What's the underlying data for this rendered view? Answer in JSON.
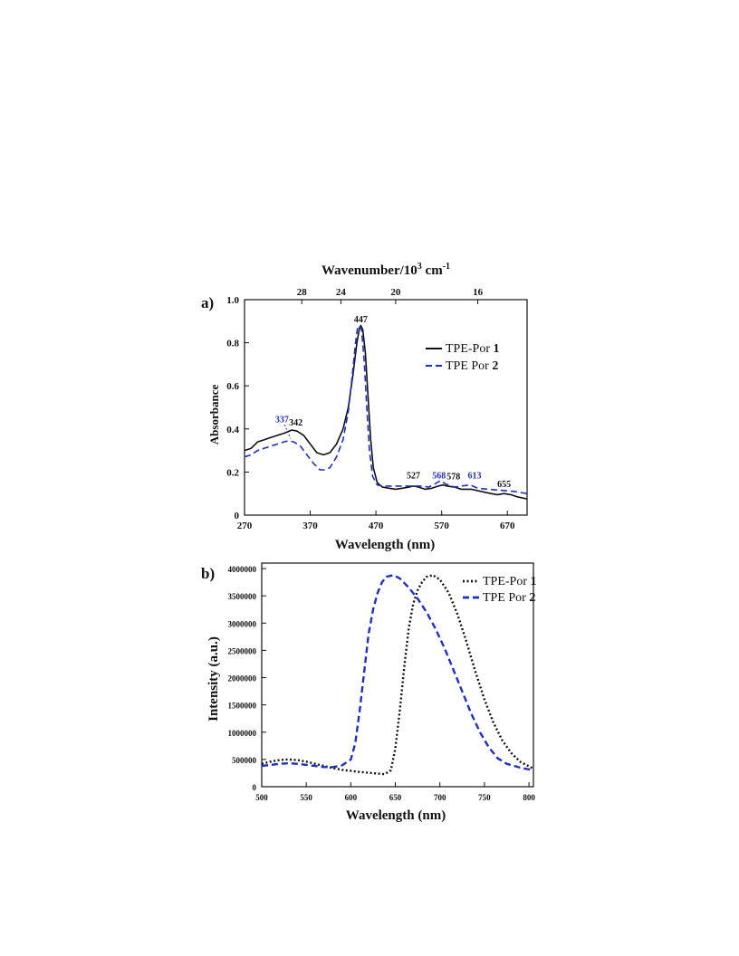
{
  "chart_data": [
    {
      "panel_label": "a)",
      "type": "line",
      "title": "",
      "xlabel": "Wavelength (nm)",
      "ylabel": "Absorbance",
      "top_axis_label": "Wavenumber/10³ cm⁻¹",
      "top_axis_label_main": "Wavenumber/10",
      "top_axis_label_sup": "3",
      "top_axis_label_unit": " cm",
      "top_axis_label_unit_sup": "-1",
      "xlim": [
        270,
        700
      ],
      "ylim": [
        0,
        1.0
      ],
      "x_ticks": [
        270,
        370,
        470,
        570,
        670
      ],
      "y_ticks": [
        0,
        0.2,
        0.4,
        0.6,
        0.8,
        1.0
      ],
      "y_tick_labels": [
        "0",
        "0.2",
        "0.4",
        "0.6",
        "0.8",
        "1.0"
      ],
      "top_ticks": [
        28,
        24,
        20,
        16
      ],
      "grid": false,
      "legend_position": "upper-right",
      "series": [
        {
          "name": "TPE-Por",
          "name_bold": "1",
          "color": "#111111",
          "dash": "solid",
          "points": [
            [
              270,
              0.3
            ],
            [
              280,
              0.31
            ],
            [
              290,
              0.34
            ],
            [
              300,
              0.35
            ],
            [
              310,
              0.36
            ],
            [
              320,
              0.37
            ],
            [
              330,
              0.38
            ],
            [
              338,
              0.39
            ],
            [
              342,
              0.395
            ],
            [
              350,
              0.39
            ],
            [
              360,
              0.37
            ],
            [
              370,
              0.33
            ],
            [
              380,
              0.29
            ],
            [
              390,
              0.28
            ],
            [
              400,
              0.29
            ],
            [
              410,
              0.33
            ],
            [
              420,
              0.4
            ],
            [
              428,
              0.5
            ],
            [
              435,
              0.65
            ],
            [
              441,
              0.8
            ],
            [
              445,
              0.87
            ],
            [
              447,
              0.88
            ],
            [
              450,
              0.86
            ],
            [
              454,
              0.75
            ],
            [
              458,
              0.55
            ],
            [
              462,
              0.35
            ],
            [
              466,
              0.22
            ],
            [
              472,
              0.15
            ],
            [
              480,
              0.13
            ],
            [
              490,
              0.125
            ],
            [
              500,
              0.12
            ],
            [
              510,
              0.125
            ],
            [
              520,
              0.13
            ],
            [
              527,
              0.135
            ],
            [
              535,
              0.13
            ],
            [
              545,
              0.12
            ],
            [
              555,
              0.125
            ],
            [
              565,
              0.135
            ],
            [
              572,
              0.14
            ],
            [
              578,
              0.135
            ],
            [
              590,
              0.13
            ],
            [
              600,
              0.12
            ],
            [
              615,
              0.12
            ],
            [
              630,
              0.11
            ],
            [
              645,
              0.1
            ],
            [
              655,
              0.095
            ],
            [
              665,
              0.1
            ],
            [
              675,
              0.095
            ],
            [
              685,
              0.085
            ],
            [
              700,
              0.075
            ]
          ]
        },
        {
          "name": "TPE Por",
          "name_bold": "2",
          "color": "#1f2fc6",
          "dash": "dashed",
          "points": [
            [
              270,
              0.27
            ],
            [
              280,
              0.28
            ],
            [
              290,
              0.3
            ],
            [
              300,
              0.31
            ],
            [
              310,
              0.32
            ],
            [
              320,
              0.33
            ],
            [
              330,
              0.34
            ],
            [
              337,
              0.345
            ],
            [
              345,
              0.34
            ],
            [
              355,
              0.32
            ],
            [
              365,
              0.28
            ],
            [
              375,
              0.24
            ],
            [
              385,
              0.21
            ],
            [
              392,
              0.21
            ],
            [
              400,
              0.22
            ],
            [
              410,
              0.27
            ],
            [
              420,
              0.35
            ],
            [
              428,
              0.48
            ],
            [
              434,
              0.65
            ],
            [
              439,
              0.8
            ],
            [
              442,
              0.87
            ],
            [
              445,
              0.88
            ],
            [
              448,
              0.86
            ],
            [
              452,
              0.72
            ],
            [
              456,
              0.5
            ],
            [
              460,
              0.3
            ],
            [
              465,
              0.18
            ],
            [
              472,
              0.14
            ],
            [
              480,
              0.135
            ],
            [
              495,
              0.135
            ],
            [
              510,
              0.135
            ],
            [
              527,
              0.135
            ],
            [
              540,
              0.135
            ],
            [
              550,
              0.13
            ],
            [
              560,
              0.145
            ],
            [
              568,
              0.16
            ],
            [
              576,
              0.145
            ],
            [
              590,
              0.13
            ],
            [
              600,
              0.135
            ],
            [
              613,
              0.14
            ],
            [
              625,
              0.125
            ],
            [
              640,
              0.12
            ],
            [
              660,
              0.115
            ],
            [
              680,
              0.11
            ],
            [
              700,
              0.1
            ]
          ]
        }
      ],
      "annotations": [
        {
          "text": "447",
          "color": "#111111",
          "x": 447,
          "y": 0.895
        },
        {
          "text": "337",
          "color": "#1f2fc6",
          "x": 327,
          "y": 0.43
        },
        {
          "text": "342",
          "color": "#111111",
          "x": 348,
          "y": 0.415
        },
        {
          "text": "527",
          "color": "#111111",
          "x": 527,
          "y": 0.17
        },
        {
          "text": "568",
          "color": "#1f2fc6",
          "x": 566,
          "y": 0.17
        },
        {
          "text": "578",
          "color": "#111111",
          "x": 588,
          "y": 0.165
        },
        {
          "text": "613",
          "color": "#1f2fc6",
          "x": 620,
          "y": 0.17
        },
        {
          "text": "655",
          "color": "#111111",
          "x": 665,
          "y": 0.13
        }
      ]
    },
    {
      "panel_label": "b)",
      "type": "line",
      "title": "",
      "xlabel": "Wavelength (nm)",
      "ylabel": "Intensity (a.u.)",
      "xlim": [
        500,
        805
      ],
      "ylim": [
        0,
        4100000
      ],
      "x_ticks": [
        500,
        550,
        600,
        650,
        700,
        750,
        800
      ],
      "y_ticks": [
        0,
        500000,
        1000000,
        1500000,
        2000000,
        2500000,
        3000000,
        3500000,
        4000000
      ],
      "y_tick_labels": [
        "0",
        "500000",
        "1000000",
        "1500000",
        "2000000",
        "2500000",
        "3000000",
        "3500000",
        "4000000"
      ],
      "grid": false,
      "legend_position": "upper-right",
      "series": [
        {
          "name": "TPE-Por",
          "name_bold": "1",
          "color": "#111111",
          "dash": "dotted",
          "points": [
            [
              500,
              420000
            ],
            [
              510,
              460000
            ],
            [
              520,
              490000
            ],
            [
              530,
              500000
            ],
            [
              540,
              490000
            ],
            [
              550,
              460000
            ],
            [
              560,
              420000
            ],
            [
              570,
              380000
            ],
            [
              580,
              340000
            ],
            [
              590,
              310000
            ],
            [
              600,
              290000
            ],
            [
              610,
              270000
            ],
            [
              620,
              255000
            ],
            [
              630,
              240000
            ],
            [
              638,
              230000
            ],
            [
              645,
              300000
            ],
            [
              650,
              700000
            ],
            [
              655,
              1400000
            ],
            [
              660,
              2200000
            ],
            [
              665,
              2900000
            ],
            [
              670,
              3350000
            ],
            [
              675,
              3600000
            ],
            [
              680,
              3750000
            ],
            [
              685,
              3850000
            ],
            [
              692,
              3880000
            ],
            [
              700,
              3800000
            ],
            [
              710,
              3550000
            ],
            [
              720,
              3150000
            ],
            [
              730,
              2650000
            ],
            [
              740,
              2100000
            ],
            [
              750,
              1600000
            ],
            [
              760,
              1180000
            ],
            [
              770,
              850000
            ],
            [
              780,
              620000
            ],
            [
              790,
              460000
            ],
            [
              805,
              330000
            ]
          ]
        },
        {
          "name": "TPE Por",
          "name_bold": "2",
          "color": "#1f2fc6",
          "dash": "dashed",
          "points": [
            [
              500,
              380000
            ],
            [
              510,
              400000
            ],
            [
              520,
              420000
            ],
            [
              530,
              430000
            ],
            [
              540,
              420000
            ],
            [
              550,
              400000
            ],
            [
              560,
              380000
            ],
            [
              570,
              360000
            ],
            [
              580,
              360000
            ],
            [
              590,
              390000
            ],
            [
              600,
              500000
            ],
            [
              605,
              800000
            ],
            [
              610,
              1400000
            ],
            [
              615,
              2100000
            ],
            [
              620,
              2800000
            ],
            [
              625,
              3250000
            ],
            [
              630,
              3550000
            ],
            [
              635,
              3750000
            ],
            [
              640,
              3850000
            ],
            [
              648,
              3880000
            ],
            [
              655,
              3820000
            ],
            [
              665,
              3650000
            ],
            [
              675,
              3450000
            ],
            [
              685,
              3200000
            ],
            [
              695,
              2900000
            ],
            [
              705,
              2550000
            ],
            [
              715,
              2150000
            ],
            [
              725,
              1750000
            ],
            [
              735,
              1350000
            ],
            [
              745,
              1000000
            ],
            [
              755,
              720000
            ],
            [
              765,
              520000
            ],
            [
              775,
              420000
            ],
            [
              790,
              350000
            ],
            [
              805,
              300000
            ]
          ]
        }
      ]
    }
  ]
}
